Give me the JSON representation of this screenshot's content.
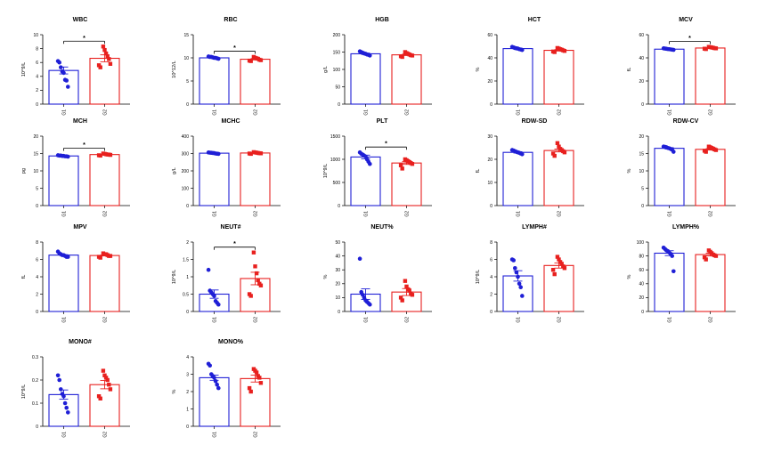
{
  "colors": {
    "G1": "#1f1fd6",
    "G2": "#e8201e",
    "axis": "#000000"
  },
  "chart_data": [
    {
      "type": "bar",
      "title": "WBC",
      "ylabel": "10^9/L",
      "ylim": [
        0,
        10
      ],
      "yticks": [
        0,
        2,
        4,
        6,
        8,
        10
      ],
      "categories": [
        "G1",
        "G2"
      ],
      "sig": "*",
      "series": [
        {
          "group": "G1",
          "mean": 4.85,
          "sem": 0.5,
          "points": [
            6.2,
            6.0,
            5.3,
            4.7,
            4.5,
            3.5,
            3.4,
            2.5
          ]
        },
        {
          "group": "G2",
          "mean": 6.6,
          "sem": 0.5,
          "points": [
            8.3,
            7.8,
            7.3,
            6.9,
            6.5,
            5.8,
            5.6,
            5.3
          ]
        }
      ]
    },
    {
      "type": "bar",
      "title": "RBC",
      "ylabel": "10^12/L",
      "ylim": [
        0,
        15
      ],
      "yticks": [
        0,
        5,
        10,
        15
      ],
      "categories": [
        "G1",
        "G2"
      ],
      "sig": "*",
      "series": [
        {
          "group": "G1",
          "mean": 10.0,
          "sem": 0.1,
          "points": [
            10.3,
            10.2,
            10.2,
            10.1,
            10.0,
            10.0,
            9.9,
            9.8
          ]
        },
        {
          "group": "G2",
          "mean": 9.7,
          "sem": 0.15,
          "points": [
            10.2,
            10.0,
            9.9,
            9.8,
            9.6,
            9.5,
            9.4,
            9.3
          ]
        }
      ]
    },
    {
      "type": "bar",
      "title": "HGB",
      "ylabel": "g/L",
      "ylim": [
        0,
        200
      ],
      "yticks": [
        0,
        50,
        100,
        150,
        200
      ],
      "categories": [
        "G1",
        "G2"
      ],
      "sig": "",
      "series": [
        {
          "group": "G1",
          "mean": 145,
          "sem": 2,
          "points": [
            152,
            150,
            148,
            146,
            145,
            143,
            142,
            140
          ]
        },
        {
          "group": "G2",
          "mean": 142,
          "sem": 2,
          "points": [
            150,
            147,
            145,
            143,
            141,
            140,
            138,
            136
          ]
        }
      ]
    },
    {
      "type": "bar",
      "title": "HCT",
      "ylabel": "%",
      "ylim": [
        0,
        60
      ],
      "yticks": [
        0,
        20,
        40,
        60
      ],
      "categories": [
        "G1",
        "G2"
      ],
      "sig": "",
      "series": [
        {
          "group": "G1",
          "mean": 48,
          "sem": 0.5,
          "points": [
            49.5,
            49,
            48.5,
            48.2,
            48,
            47.5,
            47.2,
            46.8
          ]
        },
        {
          "group": "G2",
          "mean": 46.5,
          "sem": 0.6,
          "points": [
            48.5,
            48,
            47.5,
            47,
            46.5,
            46,
            45.5,
            45
          ]
        }
      ]
    },
    {
      "type": "bar",
      "title": "MCV",
      "ylabel": "fL",
      "ylim": [
        0,
        60
      ],
      "yticks": [
        0,
        20,
        40,
        60
      ],
      "categories": [
        "G1",
        "G2"
      ],
      "sig": "*",
      "series": [
        {
          "group": "G1",
          "mean": 47.5,
          "sem": 0.2,
          "points": [
            48.2,
            48,
            47.8,
            47.6,
            47.5,
            47.3,
            47.1,
            46.9
          ]
        },
        {
          "group": "G2",
          "mean": 48.5,
          "sem": 0.3,
          "points": [
            49.5,
            49.2,
            49,
            48.7,
            48.4,
            48.2,
            47.9,
            47.6
          ]
        }
      ]
    },
    {
      "type": "bar",
      "title": "MCH",
      "ylabel": "pg",
      "ylim": [
        0,
        20
      ],
      "yticks": [
        0,
        5,
        10,
        15,
        20
      ],
      "categories": [
        "G1",
        "G2"
      ],
      "sig": "*",
      "series": [
        {
          "group": "G1",
          "mean": 14.3,
          "sem": 0.05,
          "points": [
            14.5,
            14.4,
            14.4,
            14.3,
            14.3,
            14.2,
            14.2,
            14.1
          ]
        },
        {
          "group": "G2",
          "mean": 14.7,
          "sem": 0.06,
          "points": [
            15.0,
            14.9,
            14.8,
            14.7,
            14.7,
            14.6,
            14.5,
            14.4
          ]
        }
      ]
    },
    {
      "type": "bar",
      "title": "MCHC",
      "ylabel": "g/L",
      "ylim": [
        0,
        400
      ],
      "yticks": [
        0,
        100,
        200,
        300,
        400
      ],
      "categories": [
        "G1",
        "G2"
      ],
      "sig": "",
      "series": [
        {
          "group": "G1",
          "mean": 302,
          "sem": 1.5,
          "points": [
            306,
            305,
            304,
            303,
            302,
            300,
            299,
            298
          ]
        },
        {
          "group": "G2",
          "mean": 303,
          "sem": 1.5,
          "points": [
            308,
            306,
            305,
            303,
            302,
            301,
            300,
            298
          ]
        }
      ]
    },
    {
      "type": "bar",
      "title": "PLT",
      "ylabel": "10^9/L",
      "ylim": [
        0,
        1500
      ],
      "yticks": [
        0,
        500,
        1000,
        1500
      ],
      "categories": [
        "G1",
        "G2"
      ],
      "sig": "*",
      "series": [
        {
          "group": "G1",
          "mean": 1050,
          "sem": 40,
          "points": [
            1150,
            1120,
            1100,
            1080,
            1060,
            1000,
            950,
            900
          ]
        },
        {
          "group": "G2",
          "mean": 920,
          "sem": 30,
          "points": [
            1000,
            980,
            960,
            940,
            920,
            900,
            870,
            800
          ]
        }
      ]
    },
    {
      "type": "bar",
      "title": "RDW-SD",
      "ylabel": "fL",
      "ylim": [
        0,
        30
      ],
      "yticks": [
        0,
        10,
        20,
        30
      ],
      "categories": [
        "G1",
        "G2"
      ],
      "sig": "",
      "series": [
        {
          "group": "G1",
          "mean": 23,
          "sem": 0.3,
          "points": [
            24,
            23.8,
            23.5,
            23.2,
            23,
            22.8,
            22.5,
            22.2
          ]
        },
        {
          "group": "G2",
          "mean": 23.8,
          "sem": 0.6,
          "points": [
            27,
            25.5,
            24.5,
            24,
            23.5,
            23,
            22.5,
            21.5
          ]
        }
      ]
    },
    {
      "type": "bar",
      "title": "RDW-CV",
      "ylabel": "%",
      "ylim": [
        0,
        20
      ],
      "yticks": [
        0,
        5,
        10,
        15,
        20
      ],
      "categories": [
        "G1",
        "G2"
      ],
      "sig": "",
      "series": [
        {
          "group": "G1",
          "mean": 16.5,
          "sem": 0.2,
          "points": [
            17.0,
            16.9,
            16.8,
            16.6,
            16.5,
            16.3,
            16.1,
            15.5
          ]
        },
        {
          "group": "G2",
          "mean": 16.2,
          "sem": 0.2,
          "points": [
            17.0,
            16.8,
            16.6,
            16.4,
            16.2,
            16.0,
            15.8,
            15.5
          ]
        }
      ]
    },
    {
      "type": "bar",
      "title": "MPV",
      "ylabel": "fL",
      "ylim": [
        0,
        8
      ],
      "yticks": [
        0,
        2,
        4,
        6,
        8
      ],
      "categories": [
        "G1",
        "G2"
      ],
      "sig": "",
      "series": [
        {
          "group": "G1",
          "mean": 6.5,
          "sem": 0.05,
          "points": [
            6.9,
            6.7,
            6.6,
            6.5,
            6.5,
            6.4,
            6.3,
            6.3
          ]
        },
        {
          "group": "G2",
          "mean": 6.45,
          "sem": 0.05,
          "points": [
            6.7,
            6.6,
            6.6,
            6.5,
            6.4,
            6.4,
            6.3,
            6.2
          ]
        }
      ]
    },
    {
      "type": "bar",
      "title": "NEUT#",
      "ylabel": "10^9/L",
      "ylim": [
        0,
        2.0
      ],
      "yticks": [
        0.0,
        0.5,
        1.0,
        1.5,
        2.0
      ],
      "categories": [
        "G1",
        "G2"
      ],
      "sig": "*",
      "series": [
        {
          "group": "G1",
          "mean": 0.5,
          "sem": 0.12,
          "points": [
            1.2,
            0.6,
            0.55,
            0.5,
            0.45,
            0.3,
            0.25,
            0.2
          ]
        },
        {
          "group": "G2",
          "mean": 0.95,
          "sem": 0.18,
          "points": [
            1.7,
            1.3,
            1.1,
            0.9,
            0.8,
            0.75,
            0.5,
            0.45
          ]
        }
      ]
    },
    {
      "type": "bar",
      "title": "NEUT%",
      "ylabel": "%",
      "ylim": [
        0,
        50
      ],
      "yticks": [
        0,
        10,
        20,
        30,
        40,
        50
      ],
      "categories": [
        "G1",
        "G2"
      ],
      "sig": "",
      "series": [
        {
          "group": "G1",
          "mean": 12.5,
          "sem": 3.8,
          "points": [
            38,
            14,
            12,
            10,
            8,
            7,
            6,
            5
          ]
        },
        {
          "group": "G2",
          "mean": 14,
          "sem": 2.5,
          "points": [
            22,
            18,
            16,
            15,
            13,
            12,
            10,
            8
          ]
        }
      ]
    },
    {
      "type": "bar",
      "title": "LYMPH#",
      "ylabel": "10^9/L",
      "ylim": [
        0,
        8
      ],
      "yticks": [
        0,
        2,
        4,
        6,
        8
      ],
      "categories": [
        "G1",
        "G2"
      ],
      "sig": "",
      "series": [
        {
          "group": "G1",
          "mean": 4.1,
          "sem": 0.6,
          "points": [
            6.0,
            5.9,
            5.0,
            4.5,
            4.0,
            3.2,
            2.8,
            1.8
          ]
        },
        {
          "group": "G2",
          "mean": 5.3,
          "sem": 0.3,
          "points": [
            6.3,
            6.0,
            5.7,
            5.5,
            5.2,
            5.0,
            4.8,
            4.3
          ]
        }
      ]
    },
    {
      "type": "bar",
      "title": "LYMPH%",
      "ylabel": "%",
      "ylim": [
        0,
        100
      ],
      "yticks": [
        0,
        20,
        40,
        60,
        80,
        100
      ],
      "categories": [
        "G1",
        "G2"
      ],
      "sig": "",
      "series": [
        {
          "group": "G1",
          "mean": 84,
          "sem": 3.5,
          "points": [
            92,
            90,
            88,
            87,
            85,
            83,
            80,
            58
          ]
        },
        {
          "group": "G2",
          "mean": 82,
          "sem": 2,
          "points": [
            88,
            86,
            84,
            82,
            81,
            80,
            78,
            75
          ]
        }
      ]
    },
    {
      "type": "bar",
      "title": "MONO#",
      "ylabel": "10^9/L",
      "ylim": [
        0,
        0.3
      ],
      "yticks": [
        0.0,
        0.1,
        0.2,
        0.3
      ],
      "categories": [
        "G1",
        "G2"
      ],
      "sig": "",
      "series": [
        {
          "group": "G1",
          "mean": 0.137,
          "sem": 0.02,
          "points": [
            0.22,
            0.2,
            0.16,
            0.14,
            0.13,
            0.1,
            0.08,
            0.06
          ]
        },
        {
          "group": "G2",
          "mean": 0.18,
          "sem": 0.018,
          "points": [
            0.24,
            0.22,
            0.21,
            0.2,
            0.18,
            0.16,
            0.13,
            0.12
          ]
        }
      ]
    },
    {
      "type": "bar",
      "title": "MONO%",
      "ylabel": "%",
      "ylim": [
        0,
        4
      ],
      "yticks": [
        0,
        1,
        2,
        3,
        4
      ],
      "categories": [
        "G1",
        "G2"
      ],
      "sig": "",
      "series": [
        {
          "group": "G1",
          "mean": 2.8,
          "sem": 0.15,
          "points": [
            3.6,
            3.5,
            3.0,
            2.9,
            2.8,
            2.6,
            2.4,
            2.2
          ]
        },
        {
          "group": "G2",
          "mean": 2.75,
          "sem": 0.2,
          "points": [
            3.3,
            3.2,
            3.1,
            2.9,
            2.8,
            2.5,
            2.2,
            2.0
          ]
        }
      ]
    }
  ]
}
